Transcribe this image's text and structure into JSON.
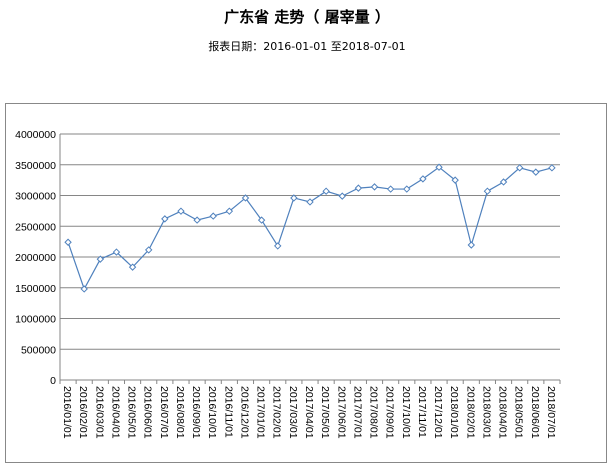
{
  "chart_data": {
    "type": "line",
    "title": "广东省 走势（ 屠宰量 ）",
    "subtitle": "报表日期：2016-01-01 至2018-07-01",
    "categories": [
      "2016/01/01",
      "2016/02/01",
      "2016/03/01",
      "2016/04/01",
      "2016/05/01",
      "2016/06/01",
      "2016/07/01",
      "2016/08/01",
      "2016/09/01",
      "2016/10/01",
      "2016/11/01",
      "2016/12/01",
      "2017/01/01",
      "2017/02/01",
      "2017/03/01",
      "2017/04/01",
      "2017/05/01",
      "2017/06/01",
      "2017/07/01",
      "2017/08/01",
      "2017/09/01",
      "2017/10/01",
      "2017/11/01",
      "2017/12/01",
      "2018/01/01",
      "2018/02/01",
      "2018/03/01",
      "2018/04/01",
      "2018/05/01",
      "2018/06/01",
      "2018/07/01"
    ],
    "values": [
      2240000,
      1480000,
      1965000,
      2080000,
      1835000,
      2115000,
      2620000,
      2745000,
      2600000,
      2665000,
      2745000,
      2960000,
      2600000,
      2180000,
      2960000,
      2895000,
      3070000,
      2990000,
      3120000,
      3140000,
      3105000,
      3105000,
      3270000,
      3460000,
      3250000,
      2195000,
      3070000,
      3220000,
      3450000,
      3380000,
      3450000
    ],
    "ylim": [
      0,
      4000000
    ],
    "yticks": [
      0,
      500000,
      1000000,
      1500000,
      2000000,
      2500000,
      3000000,
      3500000,
      4000000
    ],
    "grid": true,
    "legend": "none",
    "colors": {
      "line": "#4f81bd",
      "grid": "#868686"
    }
  }
}
